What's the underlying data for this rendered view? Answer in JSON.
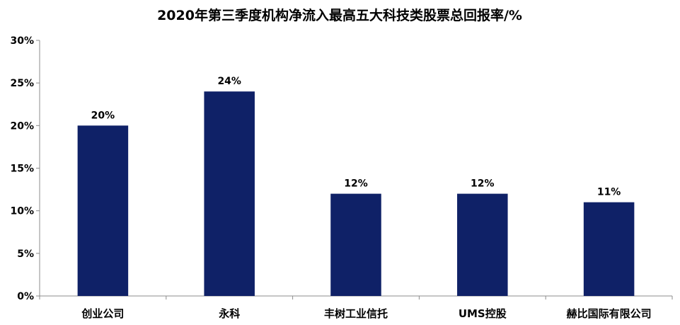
{
  "chart_data": {
    "type": "bar",
    "title": "2020年第三季度机构净流入最高五大科技类股票总回报率/%",
    "xlabel": "",
    "ylabel": "",
    "categories": [
      "创业公司",
      "永科",
      "丰树工业信托",
      "UMS控股",
      "赫比国际有限公司"
    ],
    "values": [
      20,
      24,
      12,
      12,
      11
    ],
    "data_labels": [
      "20%",
      "24%",
      "12%",
      "12%",
      "11%"
    ],
    "ylim": [
      0,
      30
    ],
    "yticks": [
      0,
      5,
      10,
      15,
      20,
      25,
      30
    ],
    "ytick_labels": [
      "0%",
      "5%",
      "10%",
      "15%",
      "20%",
      "25%",
      "30%"
    ],
    "grid": false,
    "legend": "none",
    "bar_color": "#0f2167"
  }
}
